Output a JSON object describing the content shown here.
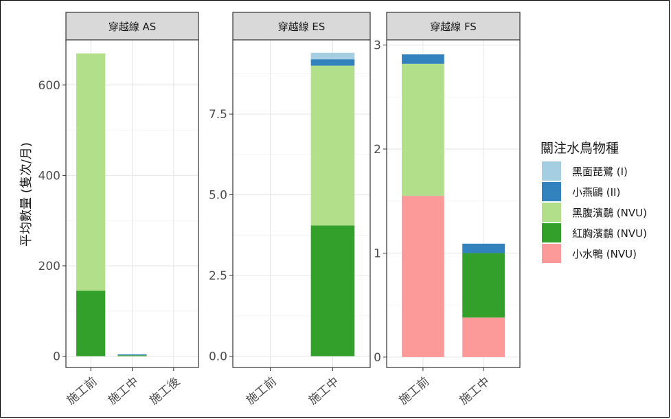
{
  "chart_data": {
    "type": "bar",
    "stacked": true,
    "ylabel": "平均數量 (隻次/月)",
    "legend": {
      "title": "關注水鳥物種",
      "placement": "right",
      "items": [
        {
          "name": "黑面琵鷺 (I)",
          "color": "#a6cee3"
        },
        {
          "name": "小燕鷗 (II)",
          "color": "#3182bd"
        },
        {
          "name": "黑腹濱鷸 (NVU)",
          "color": "#b2df8a"
        },
        {
          "name": "紅胸濱鷸 (NVU)",
          "color": "#33a02c"
        },
        {
          "name": "小水鴨 (NVU)",
          "color": "#fb9a99"
        }
      ]
    },
    "grid": true,
    "facets": [
      {
        "title": "穿越線 AS",
        "categories": [
          "施工前",
          "施工中",
          "施工後"
        ],
        "ylim": [
          -25,
          700
        ],
        "yticks": [
          0,
          200,
          400,
          600
        ],
        "ytick_labels": [
          "0",
          "200",
          "400",
          "600"
        ],
        "stacks": [
          [
            {
              "series": "紅胸濱鷸 (NVU)",
              "value": 145
            },
            {
              "series": "黑腹濱鷸 (NVU)",
              "value": 525
            }
          ],
          [
            {
              "series": "紅胸濱鷸 (NVU)",
              "value": 2
            },
            {
              "series": "小燕鷗 (II)",
              "value": 2
            }
          ],
          []
        ]
      },
      {
        "title": "穿越線 ES",
        "categories": [
          "施工前",
          "施工中"
        ],
        "ylim": [
          -0.35,
          9.8
        ],
        "yticks": [
          0,
          2.5,
          5.0,
          7.5
        ],
        "ytick_labels": [
          "0.0",
          "2.5",
          "5.0",
          "7.5"
        ],
        "stacks": [
          [],
          [
            {
              "series": "紅胸濱鷸 (NVU)",
              "value": 4.05
            },
            {
              "series": "黑腹濱鷸 (NVU)",
              "value": 4.95
            },
            {
              "series": "小燕鷗 (II)",
              "value": 0.2
            },
            {
              "series": "黑面琵鷺 (I)",
              "value": 0.2
            }
          ]
        ]
      },
      {
        "title": "穿越線 FS",
        "categories": [
          "施工前",
          "施工中"
        ],
        "ylim": [
          -0.1,
          3.05
        ],
        "yticks": [
          0,
          1,
          2,
          3
        ],
        "ytick_labels": [
          "0",
          "1",
          "2",
          "3"
        ],
        "stacks": [
          [
            {
              "series": "小水鴨 (NVU)",
              "value": 1.55
            },
            {
              "series": "黑腹濱鷸 (NVU)",
              "value": 1.27
            },
            {
              "series": "小燕鷗 (II)",
              "value": 0.09
            }
          ],
          [
            {
              "series": "小水鴨 (NVU)",
              "value": 0.38
            },
            {
              "series": "紅胸濱鷸 (NVU)",
              "value": 0.62
            },
            {
              "series": "小燕鷗 (II)",
              "value": 0.09
            }
          ]
        ]
      }
    ]
  }
}
